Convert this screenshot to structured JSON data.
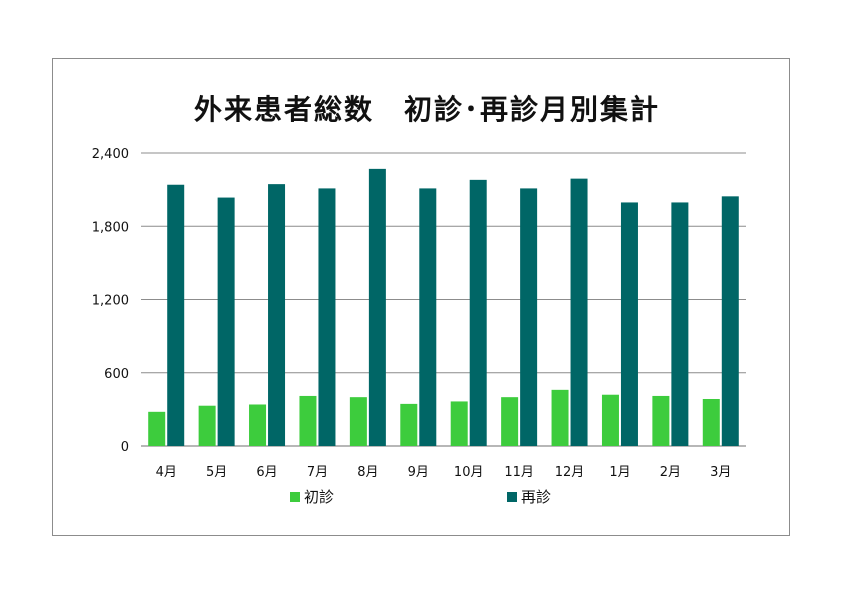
{
  "chart_data": {
    "type": "bar",
    "title": "外来患者総数　初診･再診月別集計",
    "categories": [
      "4月",
      "5月",
      "6月",
      "7月",
      "8月",
      "9月",
      "10月",
      "11月",
      "12月",
      "1月",
      "2月",
      "3月"
    ],
    "series": [
      {
        "name": "初診",
        "color": "#3dcc3d",
        "values": [
          280,
          330,
          340,
          410,
          400,
          345,
          365,
          400,
          460,
          420,
          410,
          385
        ]
      },
      {
        "name": "再診",
        "color": "#006666",
        "values": [
          2140,
          2035,
          2145,
          2110,
          2270,
          2110,
          2180,
          2110,
          2190,
          1995,
          1995,
          2045
        ]
      }
    ],
    "ylim": [
      0,
      2400
    ],
    "yticks": [
      "0",
      "600",
      "1,200",
      "1,800",
      "2,400"
    ],
    "ytick_values": [
      0,
      600,
      1200,
      1800,
      2400
    ],
    "grid": true,
    "legend_position": "bottom"
  }
}
